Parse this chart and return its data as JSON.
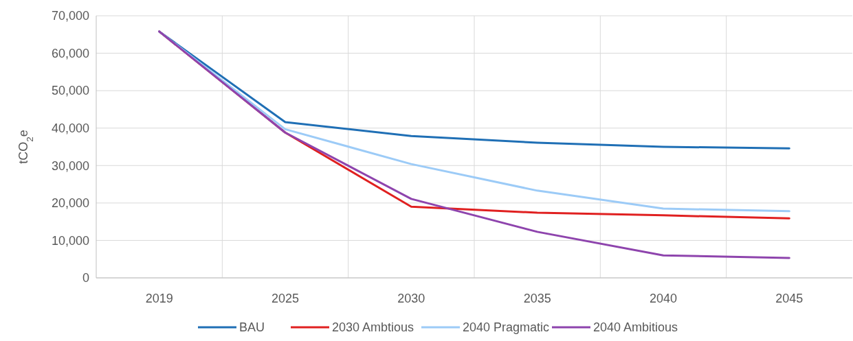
{
  "chart_data": {
    "type": "line",
    "ylabel": "tCO$_{2}$e",
    "categories": [
      "2019",
      "2025",
      "2030",
      "2035",
      "2040",
      "2045"
    ],
    "series": [
      {
        "name": "BAU",
        "color": "#1f6fb5",
        "values": [
          65800,
          41600,
          37900,
          36100,
          35000,
          34600
        ]
      },
      {
        "name": "2030 Ambtious",
        "color": "#e02020",
        "values": [
          65800,
          38800,
          19000,
          17400,
          16700,
          15900
        ]
      },
      {
        "name": "2040 Pragmatic",
        "color": "#9ccbf7",
        "values": [
          65800,
          39700,
          30400,
          23300,
          18500,
          17800
        ]
      },
      {
        "name": "2040 Ambitious",
        "color": "#8e44ad",
        "values": [
          65800,
          38800,
          21100,
          12300,
          6000,
          5300
        ]
      }
    ],
    "ylim": [
      0,
      70000
    ],
    "yticks": [
      0,
      {
        "value": 10000,
        "label": "10,000"
      },
      {
        "value": 20000,
        "label": "20,000"
      },
      {
        "value": 30000,
        "label": "30,000"
      },
      {
        "value": 40000,
        "label": "40,000"
      },
      {
        "value": 50000,
        "label": "50,000"
      },
      {
        "value": 60000,
        "label": "60,000"
      },
      {
        "value": 70000,
        "label": "70,000"
      }
    ],
    "grid": true,
    "legend": "bottom",
    "marker": "none",
    "line_style": "solid"
  }
}
